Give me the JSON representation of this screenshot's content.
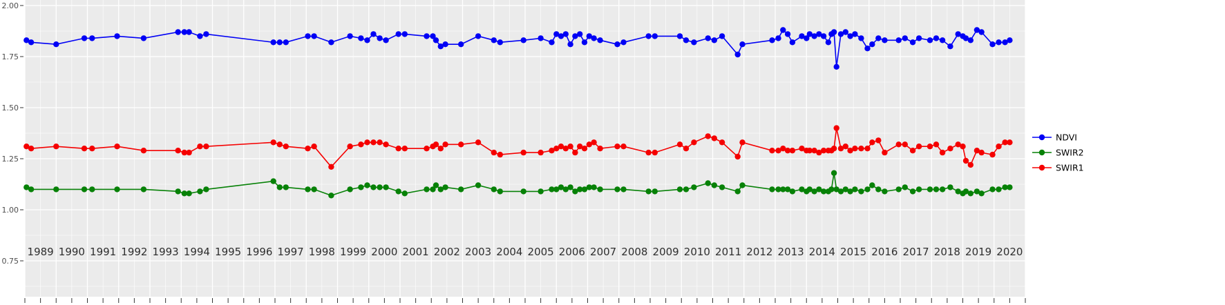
{
  "chart_data": {
    "type": "line",
    "title": "",
    "xlabel": "",
    "ylabel": "",
    "grid": true,
    "legend_position": "right",
    "panel_color": "#ebebeb",
    "grid_color": "#ffffff",
    "axis_text_color": "#4d4d4d",
    "x_axis": {
      "range": [
        1989,
        2021
      ],
      "ticks": [
        "1989",
        "1990",
        "1991",
        "1992",
        "1993",
        "1994",
        "1995",
        "1996",
        "1997",
        "1998",
        "1999",
        "2000",
        "2001",
        "2002",
        "2003",
        "2004",
        "2005",
        "2006",
        "2007",
        "2008",
        "2009",
        "2010",
        "2011",
        "2012",
        "2013",
        "2014",
        "2015",
        "2016",
        "2017",
        "2018",
        "2019",
        "2020"
      ]
    },
    "y_axis": {
      "range": [
        0.75,
        2.0
      ],
      "ticks": [
        {
          "label": "2.00",
          "value": 2.0
        },
        {
          "label": "1.75",
          "value": 1.75
        },
        {
          "label": "1.50",
          "value": 1.5
        },
        {
          "label": "1.25",
          "value": 1.25
        },
        {
          "label": "1.00",
          "value": 1.0
        },
        {
          "label": "0.75",
          "value": 0.75
        }
      ]
    },
    "series_style": [
      {
        "name": "NDVI",
        "color": "#0000f5"
      },
      {
        "name": "SWIR2",
        "color": "#078107"
      },
      {
        "name": "SWIR1",
        "color": "#f50000"
      }
    ],
    "columns": [
      "year",
      "NDVI",
      "SWIR2",
      "SWIR1"
    ],
    "rows": [
      [
        1989.05,
        1.83,
        1.11,
        1.31
      ],
      [
        1989.2,
        1.82,
        1.1,
        1.3
      ],
      [
        1990.0,
        1.81,
        1.1,
        1.31
      ],
      [
        1990.9,
        1.84,
        1.1,
        1.3
      ],
      [
        1991.15,
        1.84,
        1.1,
        1.3
      ],
      [
        1991.95,
        1.85,
        1.1,
        1.31
      ],
      [
        1992.8,
        1.84,
        1.1,
        1.29
      ],
      [
        1993.9,
        1.87,
        1.09,
        1.29
      ],
      [
        1994.1,
        1.87,
        1.08,
        1.28
      ],
      [
        1994.25,
        1.87,
        1.08,
        1.28
      ],
      [
        1994.6,
        1.85,
        1.09,
        1.31
      ],
      [
        1994.8,
        1.86,
        1.1,
        1.31
      ],
      [
        1996.95,
        1.82,
        1.14,
        1.33
      ],
      [
        1997.15,
        1.82,
        1.11,
        1.32
      ],
      [
        1997.35,
        1.82,
        1.11,
        1.31
      ],
      [
        1998.05,
        1.85,
        1.1,
        1.3
      ],
      [
        1998.25,
        1.85,
        1.1,
        1.31
      ],
      [
        1998.8,
        1.82,
        1.07,
        1.21
      ],
      [
        1999.4,
        1.85,
        1.1,
        1.31
      ],
      [
        1999.75,
        1.84,
        1.11,
        1.32
      ],
      [
        1999.95,
        1.83,
        1.12,
        1.33
      ],
      [
        2000.15,
        1.86,
        1.11,
        1.33
      ],
      [
        2000.35,
        1.84,
        1.11,
        1.33
      ],
      [
        2000.55,
        1.83,
        1.11,
        1.32
      ],
      [
        2000.95,
        1.86,
        1.09,
        1.3
      ],
      [
        2001.15,
        1.86,
        1.08,
        1.3
      ],
      [
        2001.85,
        1.85,
        1.1,
        1.3
      ],
      [
        2002.05,
        1.85,
        1.1,
        1.31
      ],
      [
        2002.15,
        1.83,
        1.12,
        1.32
      ],
      [
        2002.3,
        1.8,
        1.1,
        1.3
      ],
      [
        2002.45,
        1.81,
        1.11,
        1.32
      ],
      [
        2002.95,
        1.81,
        1.1,
        1.32
      ],
      [
        2003.5,
        1.85,
        1.12,
        1.33
      ],
      [
        2004.0,
        1.83,
        1.1,
        1.28
      ],
      [
        2004.2,
        1.82,
        1.09,
        1.27
      ],
      [
        2004.95,
        1.83,
        1.09,
        1.28
      ],
      [
        2005.5,
        1.84,
        1.09,
        1.28
      ],
      [
        2005.85,
        1.82,
        1.1,
        1.29
      ],
      [
        2006.0,
        1.86,
        1.1,
        1.3
      ],
      [
        2006.15,
        1.85,
        1.11,
        1.31
      ],
      [
        2006.3,
        1.86,
        1.1,
        1.3
      ],
      [
        2006.45,
        1.81,
        1.11,
        1.31
      ],
      [
        2006.6,
        1.85,
        1.09,
        1.28
      ],
      [
        2006.75,
        1.86,
        1.1,
        1.31
      ],
      [
        2006.9,
        1.82,
        1.1,
        1.3
      ],
      [
        2007.05,
        1.85,
        1.11,
        1.32
      ],
      [
        2007.2,
        1.84,
        1.11,
        1.33
      ],
      [
        2007.4,
        1.83,
        1.1,
        1.3
      ],
      [
        2007.95,
        1.81,
        1.1,
        1.31
      ],
      [
        2008.15,
        1.82,
        1.1,
        1.31
      ],
      [
        2008.95,
        1.85,
        1.09,
        1.28
      ],
      [
        2009.15,
        1.85,
        1.09,
        1.28
      ],
      [
        2009.95,
        1.85,
        1.1,
        1.32
      ],
      [
        2010.15,
        1.83,
        1.1,
        1.3
      ],
      [
        2010.4,
        1.82,
        1.11,
        1.33
      ],
      [
        2010.85,
        1.84,
        1.13,
        1.36
      ],
      [
        2011.05,
        1.83,
        1.12,
        1.35
      ],
      [
        2011.3,
        1.85,
        1.11,
        1.33
      ],
      [
        2011.8,
        1.76,
        1.09,
        1.26
      ],
      [
        2011.95,
        1.81,
        1.12,
        1.33
      ],
      [
        2012.9,
        1.83,
        1.1,
        1.29
      ],
      [
        2013.1,
        1.84,
        1.1,
        1.29
      ],
      [
        2013.25,
        1.88,
        1.1,
        1.3
      ],
      [
        2013.4,
        1.86,
        1.1,
        1.29
      ],
      [
        2013.55,
        1.82,
        1.09,
        1.29
      ],
      [
        2013.85,
        1.85,
        1.1,
        1.3
      ],
      [
        2014.0,
        1.84,
        1.09,
        1.29
      ],
      [
        2014.1,
        1.86,
        1.1,
        1.29
      ],
      [
        2014.25,
        1.85,
        1.09,
        1.29
      ],
      [
        2014.4,
        1.86,
        1.1,
        1.28
      ],
      [
        2014.55,
        1.85,
        1.09,
        1.29
      ],
      [
        2014.7,
        1.82,
        1.09,
        1.29
      ],
      [
        2014.8,
        1.86,
        1.1,
        1.29
      ],
      [
        2014.88,
        1.87,
        1.18,
        1.3
      ],
      [
        2014.96,
        1.7,
        1.1,
        1.4
      ],
      [
        2015.1,
        1.86,
        1.09,
        1.3
      ],
      [
        2015.25,
        1.87,
        1.1,
        1.31
      ],
      [
        2015.4,
        1.85,
        1.09,
        1.29
      ],
      [
        2015.55,
        1.86,
        1.1,
        1.3
      ],
      [
        2015.75,
        1.84,
        1.09,
        1.3
      ],
      [
        2015.95,
        1.79,
        1.1,
        1.3
      ],
      [
        2016.1,
        1.81,
        1.12,
        1.33
      ],
      [
        2016.3,
        1.84,
        1.1,
        1.34
      ],
      [
        2016.5,
        1.83,
        1.09,
        1.28
      ],
      [
        2016.95,
        1.83,
        1.1,
        1.32
      ],
      [
        2017.15,
        1.84,
        1.11,
        1.32
      ],
      [
        2017.4,
        1.82,
        1.09,
        1.29
      ],
      [
        2017.6,
        1.84,
        1.1,
        1.31
      ],
      [
        2017.95,
        1.83,
        1.1,
        1.31
      ],
      [
        2018.15,
        1.84,
        1.1,
        1.32
      ],
      [
        2018.35,
        1.83,
        1.1,
        1.28
      ],
      [
        2018.6,
        1.8,
        1.11,
        1.3
      ],
      [
        2018.85,
        1.86,
        1.09,
        1.32
      ],
      [
        2019.0,
        1.85,
        1.08,
        1.31
      ],
      [
        2019.1,
        1.84,
        1.09,
        1.24
      ],
      [
        2019.25,
        1.83,
        1.08,
        1.22
      ],
      [
        2019.45,
        1.88,
        1.09,
        1.29
      ],
      [
        2019.6,
        1.87,
        1.08,
        1.28
      ],
      [
        2019.95,
        1.81,
        1.1,
        1.27
      ],
      [
        2020.15,
        1.82,
        1.1,
        1.31
      ],
      [
        2020.35,
        1.82,
        1.11,
        1.33
      ],
      [
        2020.5,
        1.83,
        1.11,
        1.33
      ]
    ]
  },
  "legend": {
    "items": [
      "NDVI",
      "SWIR2",
      "SWIR1"
    ]
  }
}
